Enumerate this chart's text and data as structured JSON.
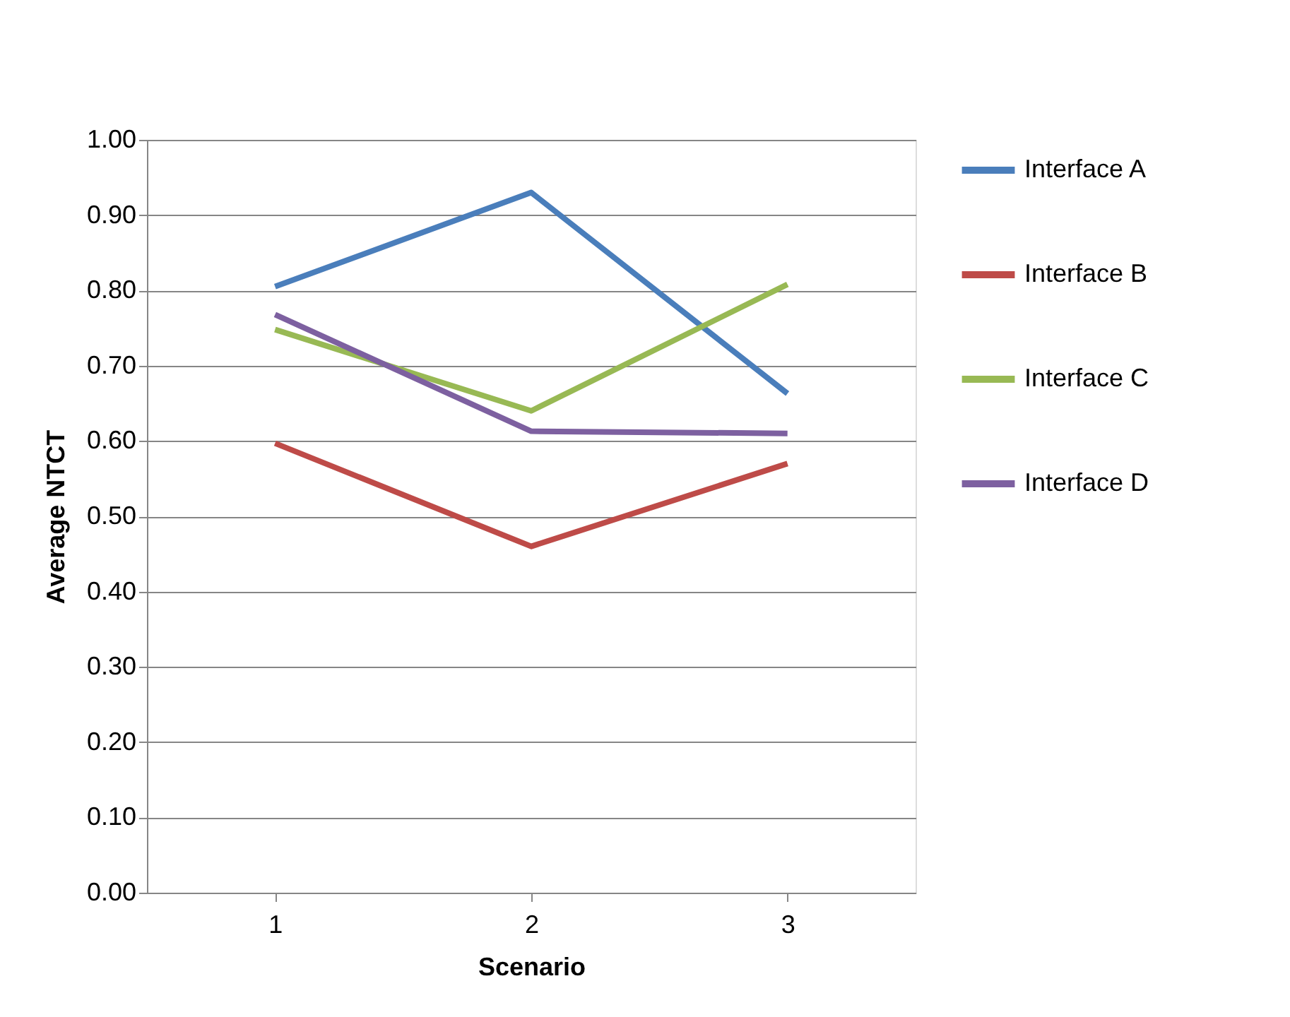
{
  "chart_data": {
    "type": "line",
    "xlabel": "Scenario",
    "ylabel": "Average NTCT",
    "categories": [
      "1",
      "2",
      "3"
    ],
    "series": [
      {
        "name": "Interface A",
        "color": "#4a7ebb",
        "values": [
          0.805,
          0.93,
          0.663
        ]
      },
      {
        "name": "Interface B",
        "color": "#be4b48",
        "values": [
          0.597,
          0.46,
          0.57
        ]
      },
      {
        "name": "Interface C",
        "color": "#98b954",
        "values": [
          0.748,
          0.64,
          0.808
        ]
      },
      {
        "name": "Interface D",
        "color": "#7d60a0",
        "values": [
          0.768,
          0.613,
          0.61
        ]
      }
    ],
    "ylim": [
      0,
      1
    ],
    "yticks": [
      {
        "value": 0,
        "label": "0.00"
      },
      {
        "value": 0.1,
        "label": "0.10"
      },
      {
        "value": 0.2,
        "label": "0.20"
      },
      {
        "value": 0.3,
        "label": "0.30"
      },
      {
        "value": 0.4,
        "label": "0.40"
      },
      {
        "value": 0.5,
        "label": "0.50"
      },
      {
        "value": 0.6,
        "label": "0.60"
      },
      {
        "value": 0.7,
        "label": "0.70"
      },
      {
        "value": 0.8,
        "label": "0.80"
      },
      {
        "value": 0.9,
        "label": "0.90"
      },
      {
        "value": 1,
        "label": "1.00"
      }
    ],
    "grid": "y",
    "legend": "right",
    "marker": "none",
    "line_style": "solid"
  }
}
